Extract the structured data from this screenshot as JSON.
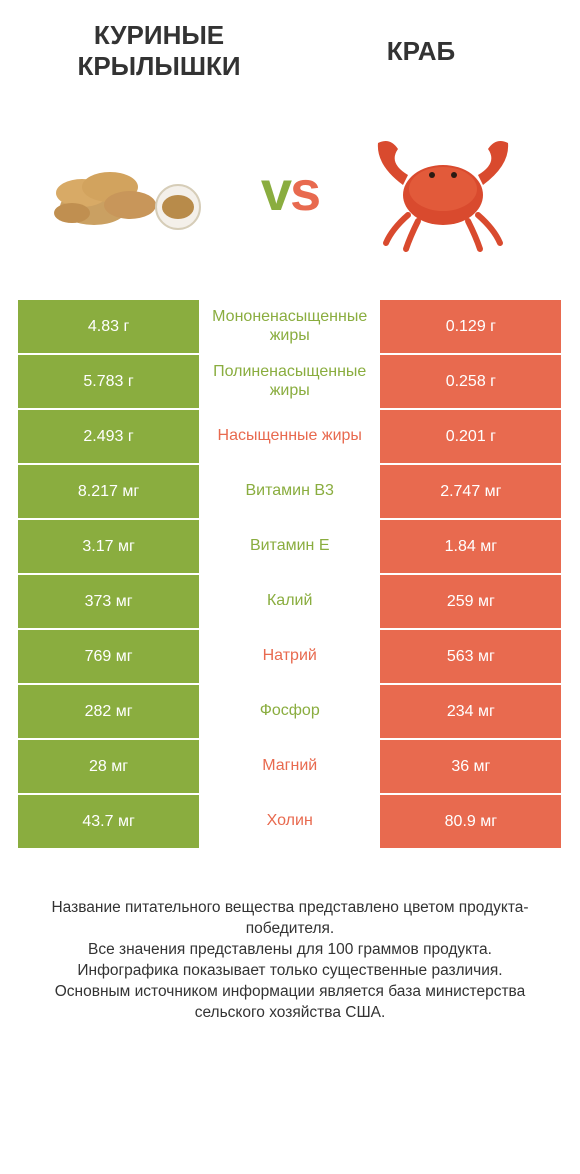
{
  "header": {
    "left_title": "Куриные крылышки",
    "right_title": "Краб",
    "vs_text": "vs"
  },
  "colors": {
    "green": "#8aad3f",
    "orange": "#e86a4f",
    "white": "#ffffff",
    "text": "#333333"
  },
  "icons": {
    "left": "chicken-wings",
    "right": "crab"
  },
  "table": {
    "left_bg": "#8aad3f",
    "right_bg": "#e86a4f",
    "rows": [
      {
        "left": "4.83 г",
        "label": "Мононенасыщенные жиры",
        "right": "0.129 г",
        "winner": "left"
      },
      {
        "left": "5.783 г",
        "label": "Полиненасыщенные жиры",
        "right": "0.258 г",
        "winner": "left"
      },
      {
        "left": "2.493 г",
        "label": "Насыщенные жиры",
        "right": "0.201 г",
        "winner": "right"
      },
      {
        "left": "8.217 мг",
        "label": "Витамин B3",
        "right": "2.747 мг",
        "winner": "left"
      },
      {
        "left": "3.17 мг",
        "label": "Витамин E",
        "right": "1.84 мг",
        "winner": "left"
      },
      {
        "left": "373 мг",
        "label": "Калий",
        "right": "259 мг",
        "winner": "left"
      },
      {
        "left": "769 мг",
        "label": "Натрий",
        "right": "563 мг",
        "winner": "right"
      },
      {
        "left": "282 мг",
        "label": "Фосфор",
        "right": "234 мг",
        "winner": "left"
      },
      {
        "left": "28 мг",
        "label": "Магний",
        "right": "36 мг",
        "winner": "right"
      },
      {
        "left": "43.7 мг",
        "label": "Холин",
        "right": "80.9 мг",
        "winner": "right"
      }
    ]
  },
  "footer": {
    "line1": "Название питательного вещества представлено цветом продукта-победителя.",
    "line2": "Все значения представлены для 100 граммов продукта.",
    "line3": "Инфографика показывает только существенные различия.",
    "line4": "Основным источником информации является база министерства сельского хозяйства США."
  }
}
